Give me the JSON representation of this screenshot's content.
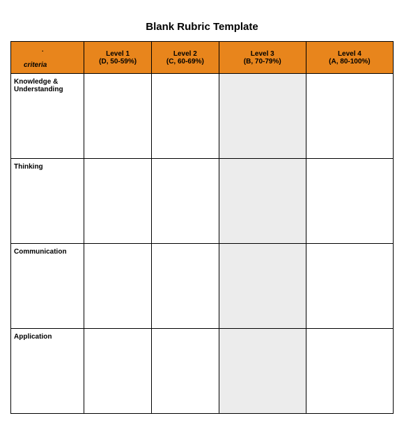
{
  "title": "Blank Rubric Template",
  "table": {
    "header_bg_color": "#e8851c",
    "shaded_cell_color": "#ececec",
    "background_color": "#ffffff",
    "border_color": "#000000",
    "criteria_label": "criteria",
    "columns": [
      {
        "line1": "Level 1",
        "line2": "(D, 50-59%)",
        "shaded": false
      },
      {
        "line1": "Level 2",
        "line2": "(C, 60-69%)",
        "shaded": false
      },
      {
        "line1": "Level 3",
        "line2": "(B, 70-79%)",
        "shaded": true
      },
      {
        "line1": "Level 4",
        "line2": "(A, 80-100%)",
        "shaded": false
      }
    ],
    "rows": [
      {
        "label": "Knowledge & Understanding"
      },
      {
        "label": "Thinking"
      },
      {
        "label": "Communication"
      },
      {
        "label": "Application"
      }
    ],
    "title_fontsize": 15,
    "header_fontsize": 10,
    "cell_fontsize": 10
  }
}
